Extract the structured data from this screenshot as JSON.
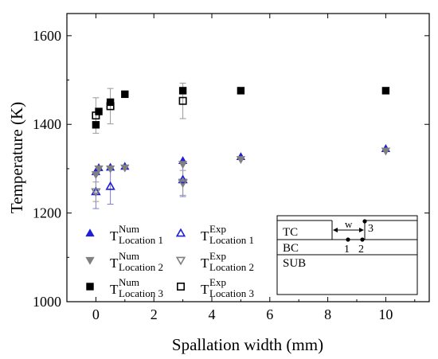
{
  "chart_data": {
    "type": "scatter",
    "xlabel": "Spallation width (mm)",
    "ylabel": "Temperature (K)",
    "xlim": [
      -1,
      11.5
    ],
    "ylim": [
      1000,
      1650
    ],
    "xticks": [
      0,
      2,
      4,
      6,
      8,
      10
    ],
    "yticks": [
      1000,
      1200,
      1400,
      1600
    ],
    "legend_position": "bottom-left",
    "series": [
      {
        "key": "num1",
        "base": "T",
        "sup": "Num",
        "sub": "Location 1",
        "marker": "triangle-up",
        "fill": "#1f1fd6",
        "stroke": "#1f1fd6",
        "points": [
          {
            "x": 0,
            "y": 1293
          },
          {
            "x": 0.1,
            "y": 1302
          },
          {
            "x": 0.5,
            "y": 1303
          },
          {
            "x": 1,
            "y": 1305
          },
          {
            "x": 3,
            "y": 1318
          },
          {
            "x": 5,
            "y": 1327
          },
          {
            "x": 10,
            "y": 1345
          }
        ]
      },
      {
        "key": "num2",
        "base": "T",
        "sup": "Num",
        "sub": "Location 2",
        "marker": "triangle-down",
        "fill": "#808080",
        "stroke": "#808080",
        "points": [
          {
            "x": 0,
            "y": 1287
          },
          {
            "x": 0.1,
            "y": 1300
          },
          {
            "x": 0.5,
            "y": 1300
          },
          {
            "x": 1,
            "y": 1302
          },
          {
            "x": 3,
            "y": 1270
          },
          {
            "x": 3,
            "y": 1310
          },
          {
            "x": 5,
            "y": 1321
          },
          {
            "x": 10,
            "y": 1340
          }
        ]
      },
      {
        "key": "num3",
        "base": "T",
        "sup": "Num",
        "sub": "Location 3",
        "marker": "square",
        "fill": "#000000",
        "stroke": "#000000",
        "points": [
          {
            "x": 0,
            "y": 1399
          },
          {
            "x": 0.1,
            "y": 1429
          },
          {
            "x": 0.5,
            "y": 1450
          },
          {
            "x": 1,
            "y": 1468
          },
          {
            "x": 3,
            "y": 1476
          },
          {
            "x": 5,
            "y": 1476
          },
          {
            "x": 10,
            "y": 1476
          }
        ]
      },
      {
        "key": "exp1",
        "base": "T",
        "sup": "Exp",
        "sub": "Location 1",
        "marker": "triangle-up-open",
        "fill": "none",
        "stroke": "#1f1fd6",
        "points": [
          {
            "x": 0,
            "y": 1248,
            "err": 38
          },
          {
            "x": 0.5,
            "y": 1260,
            "err": 40
          },
          {
            "x": 3,
            "y": 1275,
            "err": 38
          }
        ]
      },
      {
        "key": "exp2",
        "base": "T",
        "sup": "Exp",
        "sub": "Location 2",
        "marker": "triangle-down-open",
        "fill": "none",
        "stroke": "#808080",
        "points": [
          {
            "x": 0,
            "y": 1248,
            "err": 22
          },
          {
            "x": 3,
            "y": 1268,
            "err": 28
          }
        ]
      },
      {
        "key": "exp3",
        "base": "T",
        "sup": "Exp",
        "sub": "Location 3",
        "marker": "square-open",
        "fill": "none",
        "stroke": "#000000",
        "points": [
          {
            "x": 0,
            "y": 1420,
            "err": 40
          },
          {
            "x": 0.5,
            "y": 1441,
            "err": 40
          },
          {
            "x": 3,
            "y": 1453,
            "err": 40
          }
        ]
      }
    ],
    "inset": {
      "tc": "TC",
      "bc": "BC",
      "sub": "SUB",
      "w": "w",
      "p1": "1",
      "p2": "2",
      "p3": "3"
    }
  }
}
